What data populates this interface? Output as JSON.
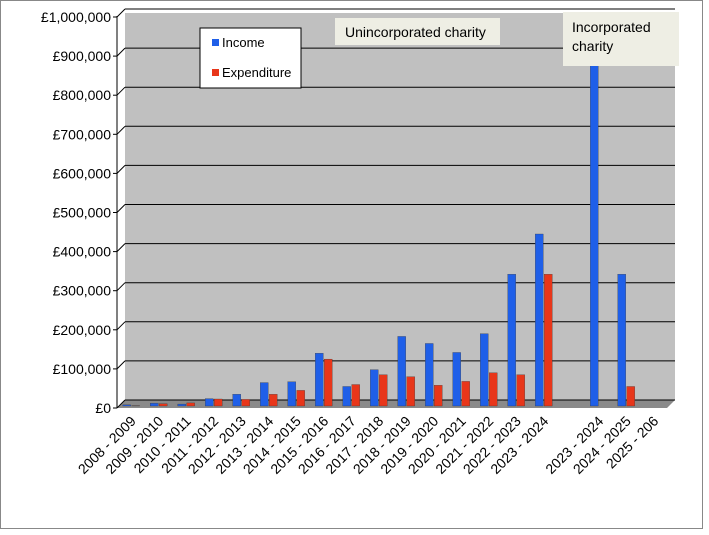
{
  "chart_data": {
    "type": "bar",
    "categories": [
      "2008 - 2009",
      "2009 - 2010",
      "2010 - 2011",
      "2011 - 2012",
      "2012 - 2013",
      "2013 - 2014",
      "2014 - 2015",
      "2015 - 2016",
      "2016 - 2017",
      "2017 - 2018",
      "2018 - 2019",
      "2019 - 2020",
      "2020 - 2021",
      "2021 - 2022",
      "2022 - 2023",
      "2023 - 2024",
      null,
      "2023 - 2024",
      "2024 - 2025",
      "2025 - 206"
    ],
    "series": [
      {
        "name": "Income",
        "color": "#1f5fe8",
        "values": [
          8000,
          12000,
          10000,
          24000,
          35000,
          65000,
          67000,
          140000,
          55000,
          98000,
          183000,
          165000,
          142000,
          190000,
          342000,
          445000,
          null,
          900000,
          342000,
          0
        ]
      },
      {
        "name": "Expenditure",
        "color": "#e8361a",
        "values": [
          6000,
          11000,
          13000,
          23000,
          22000,
          35000,
          45000,
          125000,
          60000,
          85000,
          80000,
          58000,
          68000,
          90000,
          85000,
          342000,
          null,
          3000,
          55000,
          0
        ]
      }
    ],
    "ylim": [
      0,
      1000000
    ],
    "yticks": [
      {
        "value": 0,
        "label": "£0"
      },
      {
        "value": 100000,
        "label": "£100,000"
      },
      {
        "value": 200000,
        "label": "£200,000"
      },
      {
        "value": 300000,
        "label": "£300,000"
      },
      {
        "value": 400000,
        "label": "£400,000"
      },
      {
        "value": 500000,
        "label": "£500,000"
      },
      {
        "value": 600000,
        "label": "£600,000"
      },
      {
        "value": 700000,
        "label": "£700,000"
      },
      {
        "value": 800000,
        "label": "£800,000"
      },
      {
        "value": 900000,
        "label": "£900,000"
      },
      {
        "value": 1000000,
        "label": "£1,000,000"
      }
    ],
    "grid": true,
    "annotations": [
      "Unincorporated charity",
      "Incorporated",
      "charity"
    ]
  }
}
